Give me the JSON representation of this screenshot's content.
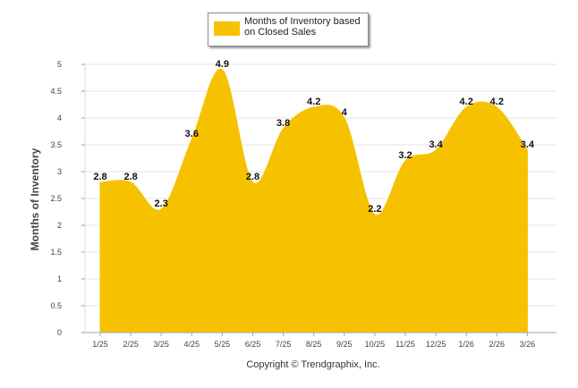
{
  "legend": {
    "label": "Months of Inventory based on Closed Sales",
    "color": "#f6c200"
  },
  "copyright": "Copyright © Trendgraphix, Inc.",
  "chart_data": {
    "type": "area",
    "title": "",
    "xlabel": "",
    "ylabel": "Months of Inventory",
    "categories": [
      "1/25",
      "2/25",
      "3/25",
      "4/25",
      "5/25",
      "6/25",
      "7/25",
      "8/25",
      "9/25",
      "10/25",
      "11/25",
      "12/25",
      "1/26",
      "2/26",
      "3/26"
    ],
    "series": [
      {
        "name": "Months of Inventory based on Closed Sales",
        "values": [
          2.8,
          2.8,
          2.3,
          3.6,
          4.9,
          2.8,
          3.8,
          4.2,
          4,
          2.2,
          3.2,
          3.4,
          4.2,
          4.2,
          3.4
        ],
        "color": "#f6c200"
      }
    ],
    "ylim": [
      0,
      5
    ],
    "yticks": [
      "0",
      "0.5",
      "1",
      "1.5",
      "2",
      "2.5",
      "3",
      "3.5",
      "4",
      "4.5",
      "5"
    ],
    "grid": true,
    "legend_position": "top-center"
  }
}
